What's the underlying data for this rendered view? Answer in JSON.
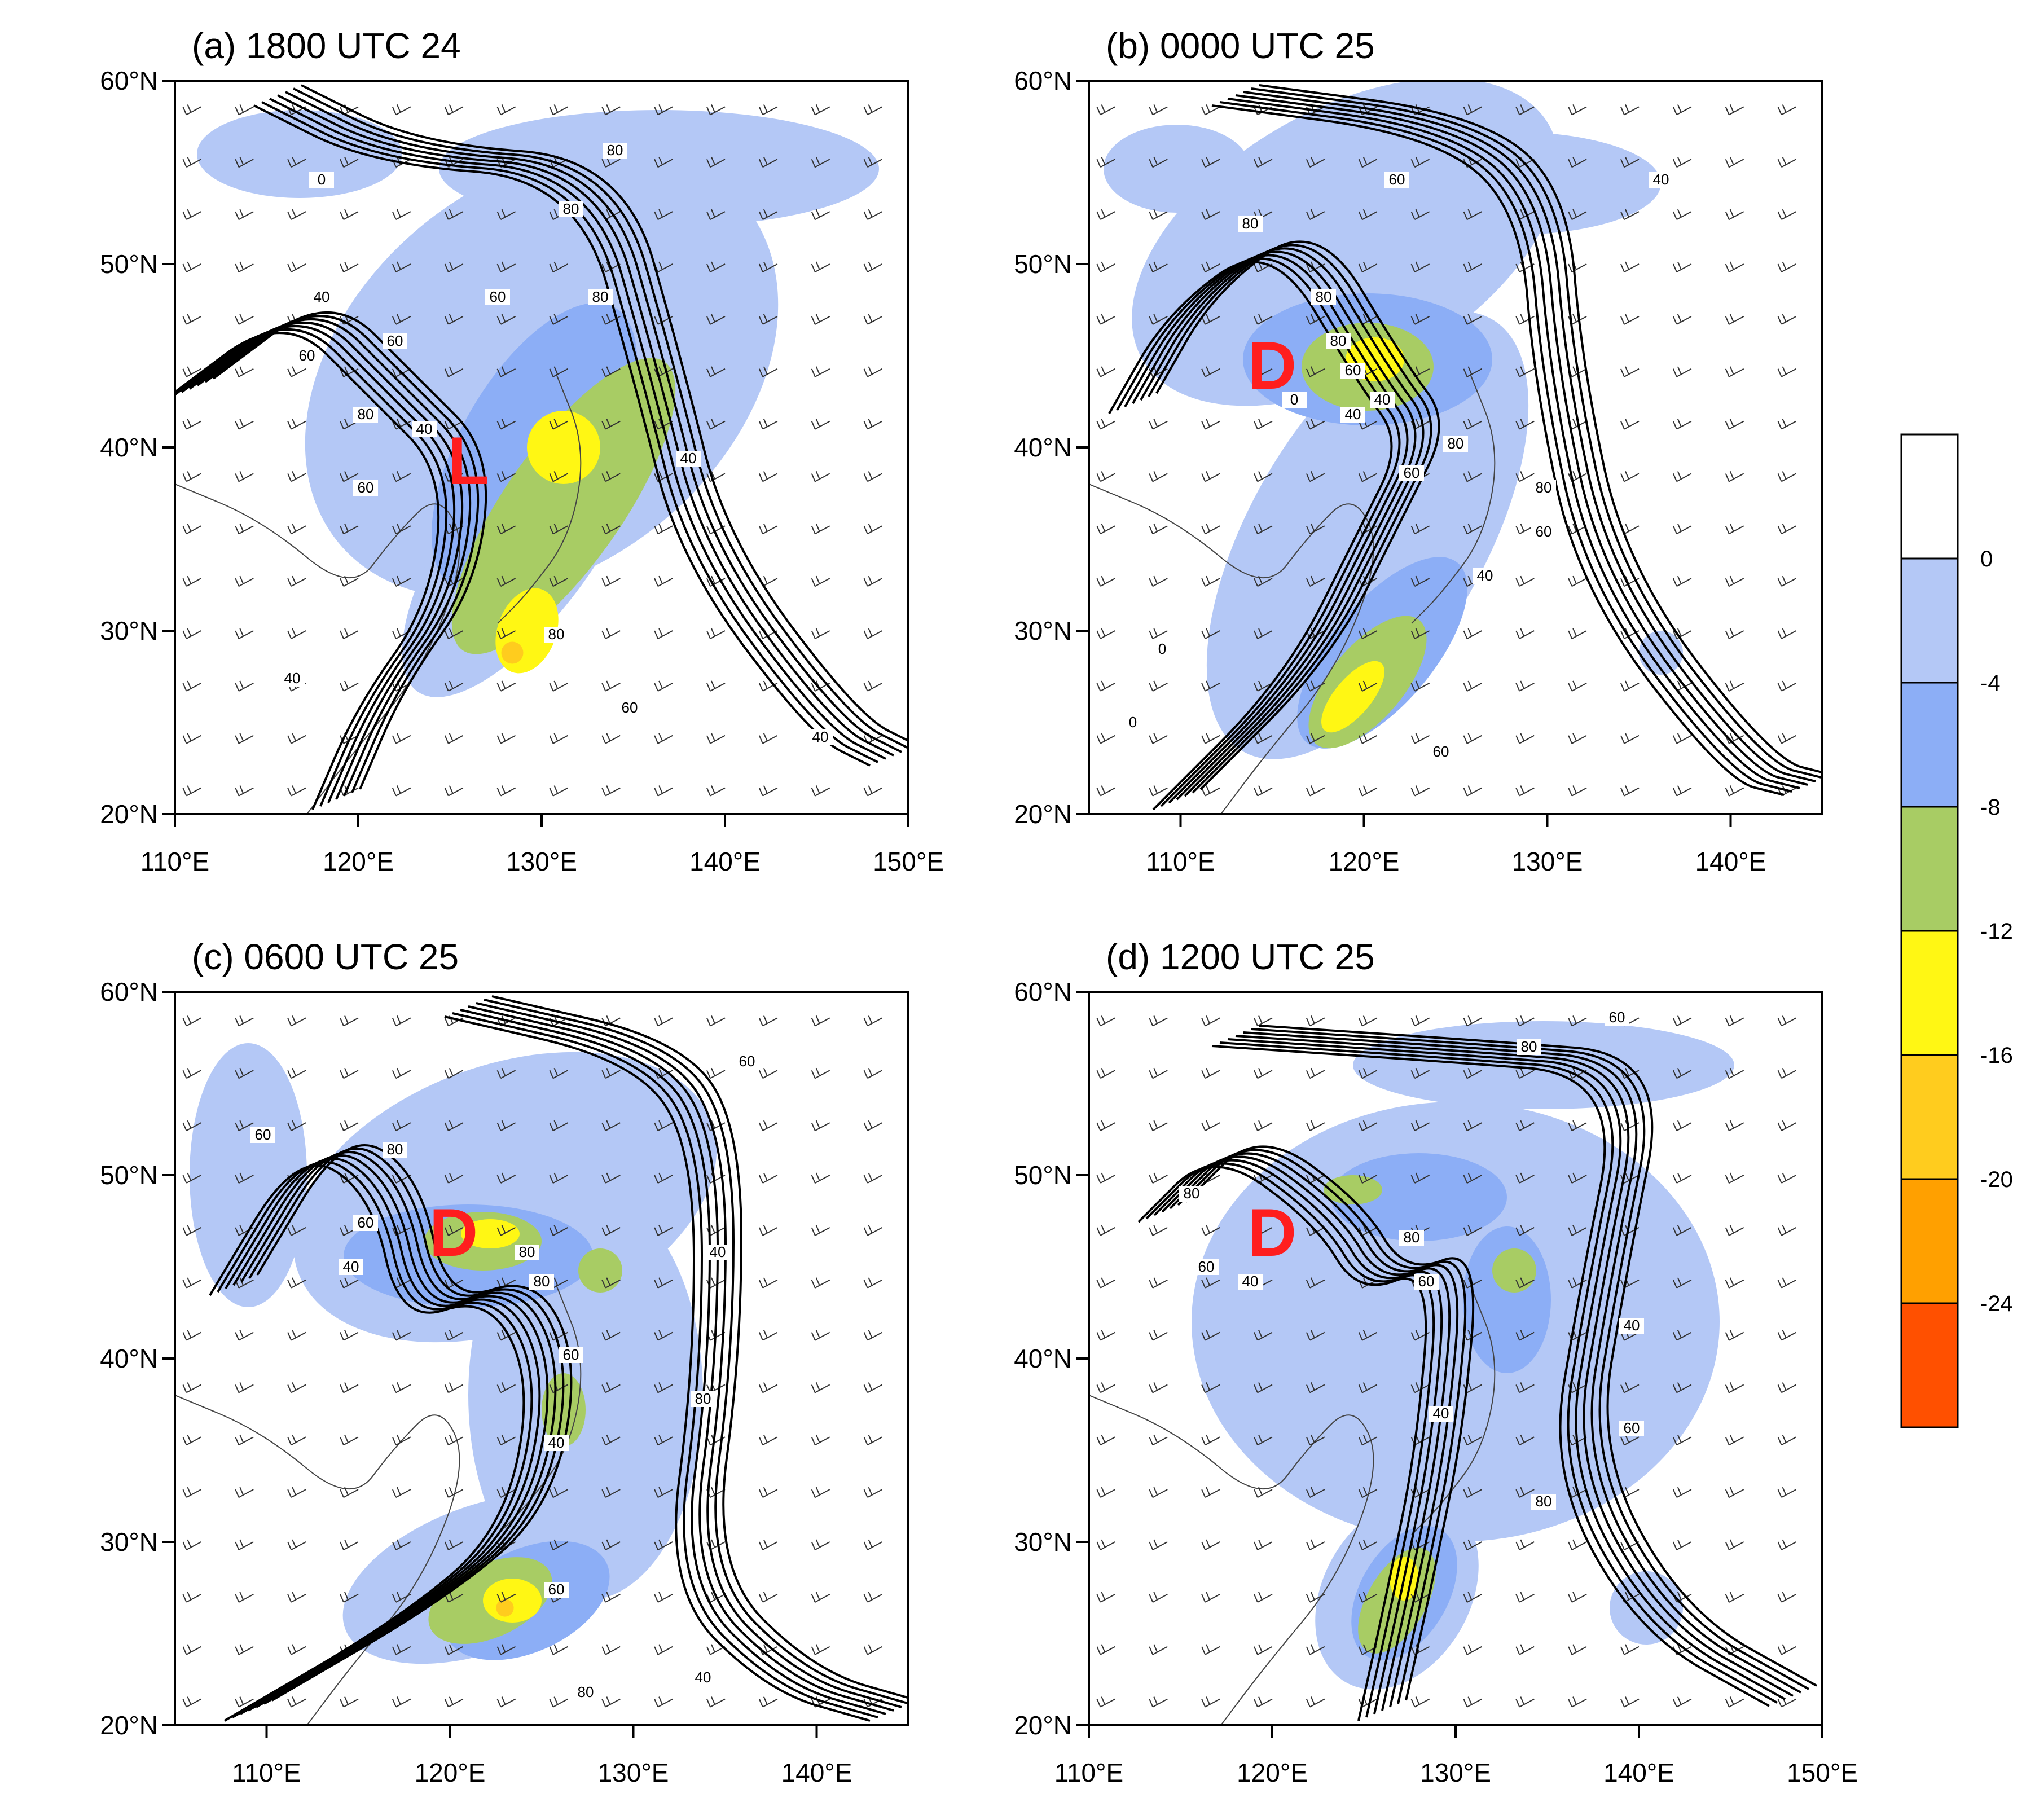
{
  "colors": {
    "shade_0_to_-4": "#b4c8f6",
    "shade_-4_to_-8": "#8caef6",
    "shade_-8_to_-12": "#a8cc64",
    "shade_-12_to_-16": "#fff714",
    "shade_-16_to_-20": "#ffcc1e",
    "shade_-20_to_-24": "#ffa000",
    "shade_below_-24": "#ff5000",
    "shade_above_0": "#ffffff",
    "center_marker": "#ff1e1e",
    "contour": "#000000"
  },
  "colorbar": {
    "tick_labels": [
      "0",
      "-4",
      "-8",
      "-12",
      "-16",
      "-20",
      "-24"
    ]
  },
  "panels": [
    {
      "title": "(a) 1800 UTC 24",
      "lon_range": [
        110,
        150
      ],
      "lat_range": [
        20,
        60
      ],
      "x_ticks": [
        "110°E",
        "120°E",
        "130°E",
        "140°E",
        "150°E"
      ],
      "y_ticks": [
        "60°N",
        "50°N",
        "40°N",
        "30°N",
        "20°N"
      ],
      "center_marker": "L",
      "contour_labels": [
        "80",
        "80",
        "60",
        "80",
        "60",
        "40",
        "60",
        "40",
        "60",
        "80",
        "80",
        "40",
        "40",
        "60",
        "40",
        "0"
      ]
    },
    {
      "title": "(b) 0000 UTC 25",
      "lon_range": [
        105,
        145
      ],
      "lat_range": [
        20,
        60
      ],
      "x_ticks": [
        "110°E",
        "120°E",
        "130°E",
        "140°E"
      ],
      "y_ticks": [
        "60°N",
        "50°N",
        "40°N",
        "30°N",
        "20°N"
      ],
      "center_marker": "D",
      "contour_labels": [
        "80",
        "60",
        "40",
        "80",
        "0",
        "80",
        "60",
        "40",
        "60",
        "80",
        "0",
        "80",
        "60",
        "40",
        "40",
        "60",
        "0"
      ]
    },
    {
      "title": "(c) 0600 UTC 25",
      "lon_range": [
        105,
        145
      ],
      "lat_range": [
        20,
        60
      ],
      "x_ticks": [
        "110°E",
        "120°E",
        "130°E",
        "140°E"
      ],
      "y_ticks": [
        "60°N",
        "50°N",
        "40°N",
        "30°N",
        "20°N"
      ],
      "center_marker": "D",
      "contour_labels": [
        "60",
        "60",
        "80",
        "80",
        "60",
        "40",
        "80",
        "60",
        "40",
        "80",
        "40",
        "60",
        "80",
        "40"
      ]
    },
    {
      "title": "(d) 1200 UTC 25",
      "lon_range": [
        110,
        150
      ],
      "lat_range": [
        20,
        60
      ],
      "x_ticks": [
        "110°E",
        "120°E",
        "130°E",
        "140°E",
        "150°E"
      ],
      "y_ticks": [
        "60°N",
        "50°N",
        "40°N",
        "30°N",
        "20°N"
      ],
      "center_marker": "D",
      "contour_labels": [
        "60",
        "80",
        "80",
        "60",
        "40",
        "80",
        "60",
        "40",
        "40",
        "60",
        "80"
      ]
    }
  ]
}
